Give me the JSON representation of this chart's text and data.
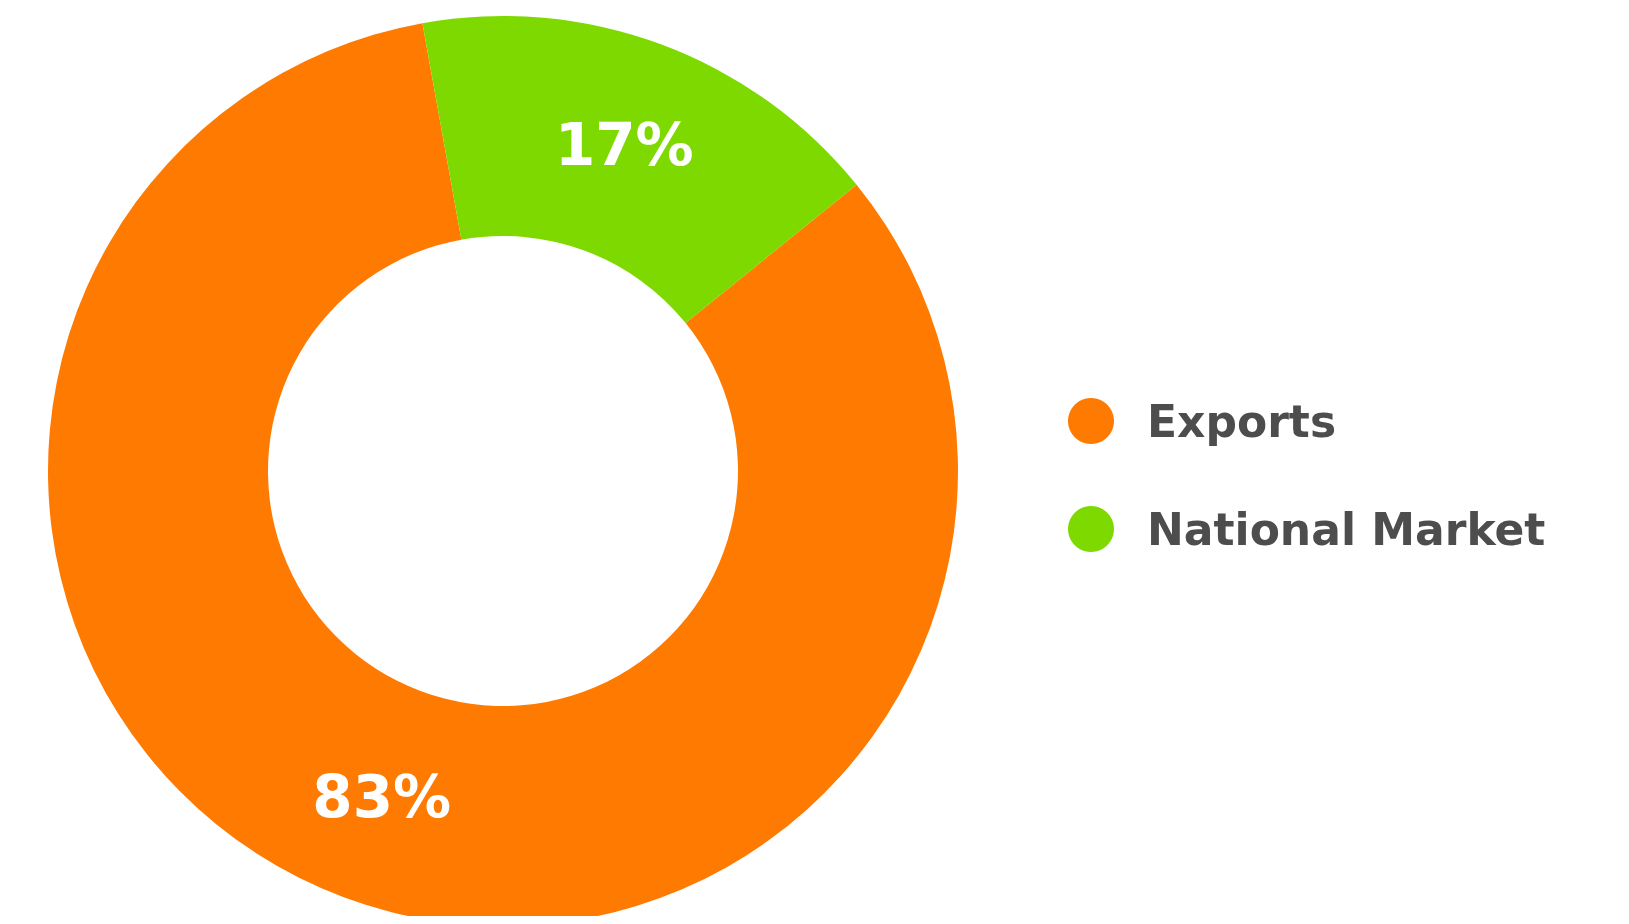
{
  "chart_data": {
    "type": "donut",
    "categories": [
      "Exports",
      "National Market"
    ],
    "values": [
      83,
      17
    ],
    "colors": [
      "#ff7a00",
      "#7ed900"
    ],
    "value_labels": [
      "83%",
      "17%"
    ],
    "legend": "right"
  }
}
